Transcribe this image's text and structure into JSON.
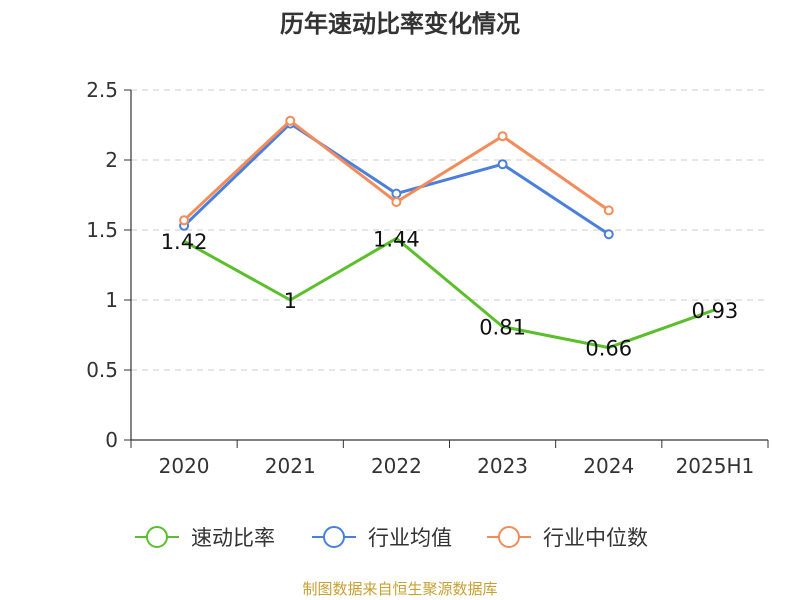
{
  "title": "历年速动比率变化情况",
  "source": "制图数据来自恒生聚源数据库",
  "chart_data": {
    "type": "line",
    "categories": [
      "2020",
      "2021",
      "2022",
      "2023",
      "2024",
      "2025H1"
    ],
    "ylim": [
      0,
      2.5
    ],
    "yticks": [
      0,
      0.5,
      1,
      1.5,
      2,
      2.5
    ],
    "ytick_labels": [
      "0",
      "0.5",
      "1",
      "1.5",
      "2",
      "2.5"
    ],
    "grid": true,
    "legend_position": "bottom",
    "series": [
      {
        "name": "速动比率",
        "color": "#5bbf2c",
        "values": [
          1.42,
          1.0,
          1.44,
          0.81,
          0.66,
          0.93
        ],
        "labels": [
          "1.42",
          "1",
          "1.44",
          "0.81",
          "0.66",
          "0.93"
        ]
      },
      {
        "name": "行业均值",
        "color": "#4a7fdc",
        "values": [
          1.53,
          2.26,
          1.76,
          1.97,
          1.47,
          null
        ]
      },
      {
        "name": "行业中位数",
        "color": "#f28c5a",
        "values": [
          1.57,
          2.28,
          1.7,
          2.17,
          1.64,
          null
        ]
      }
    ]
  }
}
